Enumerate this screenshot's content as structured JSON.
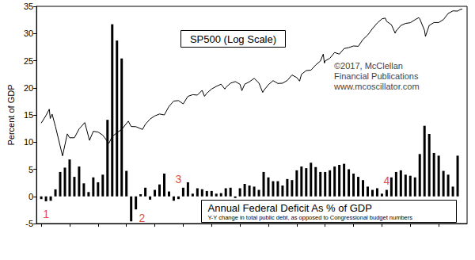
{
  "chart_data": {
    "type": "bar",
    "title": "Annual Federal Deficit As % of GDP",
    "subtitle": "Y-Y change in total public debt, as opposed to Congressional budget numbers",
    "ylabel": "Percent of GDP",
    "credit": [
      "©2017, McClellan",
      "Financial Publications",
      "www.mcoscillator.com"
    ],
    "xlim": [
      1927,
      2018
    ],
    "xticks": [
      1928,
      1934,
      1940,
      1946,
      1952,
      1958,
      1964,
      1970,
      1976,
      1982,
      1988,
      1994,
      2000,
      2006,
      2012
    ],
    "ylim": [
      -5,
      35
    ],
    "yticks": [
      -5,
      0,
      5,
      10,
      15,
      20,
      25,
      30,
      35
    ],
    "y2lim": [
      0.25,
      2500
    ],
    "y2ticks": [],
    "log": "y2",
    "grid": false,
    "tick_labels": "y",
    "series": [
      {
        "name": "Annual Federal Deficit As % of GDP",
        "type": "bar",
        "color": "#000000",
        "x": [
          1928,
          1929,
          1930,
          1931,
          1932,
          1933,
          1934,
          1935,
          1936,
          1937,
          1938,
          1939,
          1940,
          1941,
          1942,
          1943,
          1944,
          1945,
          1946,
          1947,
          1948,
          1949,
          1950,
          1951,
          1952,
          1953,
          1954,
          1955,
          1956,
          1957,
          1958,
          1959,
          1960,
          1961,
          1962,
          1963,
          1964,
          1965,
          1966,
          1967,
          1968,
          1969,
          1970,
          1971,
          1972,
          1973,
          1974,
          1975,
          1976,
          1977,
          1978,
          1979,
          1980,
          1981,
          1982,
          1983,
          1984,
          1985,
          1986,
          1987,
          1988,
          1989,
          1990,
          1991,
          1992,
          1993,
          1994,
          1995,
          1996,
          1997,
          1998,
          1999,
          2000,
          2001,
          2002,
          2003,
          2004,
          2005,
          2006,
          2007,
          2008,
          2009,
          2010,
          2011,
          2012,
          2013,
          2014,
          2015,
          2016
        ],
        "values": [
          -0.5,
          -0.9,
          -0.8,
          1.3,
          4.5,
          5.3,
          6.8,
          3.6,
          5.5,
          2.4,
          0.8,
          3.5,
          2.6,
          4.0,
          14.1,
          31.7,
          28.7,
          25.4,
          4.7,
          -4.6,
          -2.4,
          0.4,
          1.6,
          -0.6,
          1.2,
          2.2,
          4.2,
          0.9,
          -0.8,
          -0.5,
          1.6,
          2.6,
          0.5,
          1.5,
          1.3,
          1.0,
          1.0,
          0.5,
          0.6,
          1.5,
          1.6,
          -0.3,
          1.5,
          2.3,
          2.0,
          1.8,
          1.2,
          4.5,
          3.5,
          2.8,
          2.8,
          2.0,
          3.2,
          3.0,
          4.8,
          5.5,
          5.2,
          6.2,
          5.4,
          4.5,
          4.5,
          4.8,
          5.5,
          5.8,
          6.0,
          5.0,
          4.2,
          3.6,
          3.0,
          1.8,
          1.2,
          1.5,
          0.5,
          1.2,
          3.5,
          4.5,
          4.8,
          4.0,
          3.8,
          3.5,
          7.8,
          13.0,
          11.5,
          8.0,
          7.5,
          4.7,
          4.0,
          1.8,
          7.5
        ]
      },
      {
        "name": "SP500 (Log Scale)",
        "type": "line",
        "axis": "y2",
        "color": "#000000",
        "line_style": "solid",
        "marker": "none",
        "x": [
          1928,
          1929,
          1929.7,
          1929.9,
          1930.3,
          1931,
          1932.5,
          1933,
          1933.5,
          1934,
          1935,
          1936,
          1937.2,
          1938.2,
          1939,
          1940,
          1941,
          1942.3,
          1943,
          1944,
          1945,
          1946.4,
          1947,
          1948,
          1949.4,
          1950,
          1951,
          1952,
          1953,
          1954,
          1955,
          1956,
          1957,
          1958,
          1959,
          1960,
          1961,
          1962,
          1962.5,
          1963,
          1964,
          1965,
          1966,
          1966.8,
          1967,
          1968,
          1969,
          1970,
          1970.4,
          1971,
          1972,
          1973,
          1974,
          1974.8,
          1975,
          1976,
          1977,
          1978,
          1979,
          1980,
          1981,
          1982,
          1982.6,
          1983,
          1984,
          1985,
          1986,
          1987,
          1987.6,
          1987.85,
          1988,
          1989,
          1990,
          1991,
          1992,
          1993,
          1994,
          1995,
          1996,
          1997,
          1998,
          1999,
          2000,
          2000.7,
          2001,
          2002,
          2002.8,
          2003,
          2004,
          2005,
          2006,
          2007,
          2007.8,
          2008,
          2009,
          2009.2,
          2010,
          2011,
          2012,
          2013,
          2014,
          2015,
          2016,
          2016.5,
          2017
        ],
        "values": [
          17.7,
          24.4,
          31.9,
          21.5,
          25.9,
          15.3,
          4.4,
          7,
          11.2,
          9.5,
          9.5,
          13.8,
          18.1,
          8.5,
          12.5,
          12.1,
          10.6,
          7.5,
          10,
          11.8,
          13.5,
          19.2,
          15.3,
          15.2,
          13.5,
          16.8,
          21,
          24,
          26,
          25,
          36,
          45,
          46,
          40,
          55,
          59,
          58,
          71,
          55,
          63,
          75,
          84,
          92,
          75,
          80,
          96,
          103,
          92,
          70,
          92,
          102,
          118,
          97,
          65,
          70,
          90,
          107,
          95,
          96,
          108,
          136,
          122,
          105,
          140,
          164,
          167,
          208,
          246,
          330,
          225,
          247,
          277,
          353,
          330,
          417,
          435,
          466,
          459,
          615,
          740,
          970,
          1229,
          1469,
          1520,
          1320,
          1148,
          800,
          880,
          1111,
          1212,
          1248,
          1418,
          1550,
          1468,
          903,
          700,
          1115,
          1257,
          1258,
          1426,
          1848,
          2059,
          2044,
          2170,
          2240
        ]
      }
    ],
    "annotations": [
      {
        "text": "1",
        "x": 1929,
        "y": -3.2,
        "color": "#dd1111"
      },
      {
        "text": "2",
        "x": 1949.3,
        "y": -4,
        "color": "#dd1111"
      },
      {
        "text": "3",
        "x": 1957,
        "y": 3.2,
        "color": "#dd1111"
      },
      {
        "text": "4",
        "x": 2001,
        "y": 2.9,
        "color": "#dd1111"
      }
    ]
  }
}
